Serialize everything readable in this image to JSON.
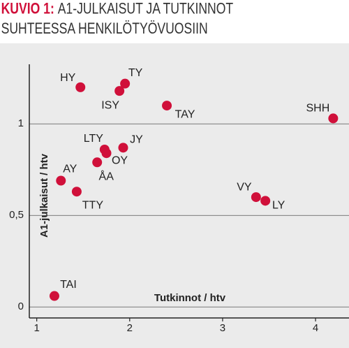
{
  "chart_data": {
    "type": "scatter",
    "figure_label": "KUVIO 1:",
    "title_lines": [
      "A1-JULKAISUT JA TUTKINNOT",
      "SUHTEESSA HENKILÖTYÖVUOSIIN"
    ],
    "x_label": "Tutkinnot / htv",
    "y_label": "A1-julkaisut / htv",
    "color": "#d0103a",
    "point_labels": [
      "HY",
      "TY",
      "ISY",
      "TAY",
      "SHH",
      "LTY",
      "JY",
      "OY",
      "ÅA",
      "AY",
      "TTY",
      "VY",
      "LY",
      "TAI"
    ],
    "x": [
      1.47,
      1.95,
      1.89,
      2.4,
      4.19,
      1.73,
      1.93,
      1.75,
      1.65,
      1.26,
      1.43,
      3.36,
      3.46,
      1.19
    ],
    "values": [
      1.2,
      1.22,
      1.18,
      1.1,
      1.03,
      0.86,
      0.87,
      0.84,
      0.79,
      0.69,
      0.63,
      0.6,
      0.58,
      0.06
    ],
    "xlim": [
      0.92,
      4.36
    ],
    "ylim": [
      -0.06,
      1.44
    ],
    "xticks": [
      1,
      2,
      3,
      4
    ],
    "yticks": [
      0,
      {
        "value": 0.5,
        "label": "0,5"
      },
      1
    ],
    "grid": true
  }
}
